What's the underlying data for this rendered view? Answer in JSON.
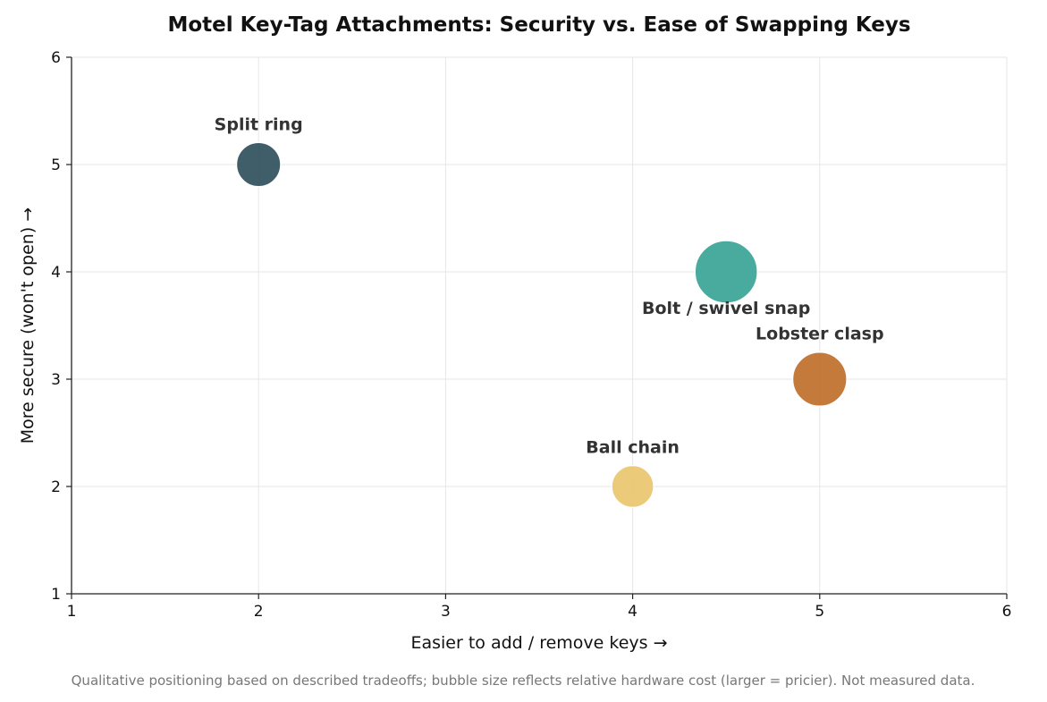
{
  "chart_data": {
    "type": "scatter",
    "title": "Motel Key-Tag Attachments: Security vs. Ease of Swapping Keys",
    "xlabel": "Easier to add / remove keys  →",
    "ylabel": "More secure (won't open) →",
    "xlim": [
      1,
      6
    ],
    "ylim": [
      1,
      6
    ],
    "xticks": [
      "1",
      "2",
      "3",
      "4",
      "5",
      "6"
    ],
    "yticks": [
      "1",
      "2",
      "3",
      "4",
      "5",
      "6"
    ],
    "grid": true,
    "size_meaning": "relative hardware cost",
    "points": [
      {
        "label": "Split ring",
        "x": 2,
        "y": 5,
        "cost": 2,
        "color": "#2b4c59",
        "label_pos": "above"
      },
      {
        "label": "Bolt / swivel snap",
        "x": 4.5,
        "y": 4,
        "cost": 4,
        "color": "#35a294",
        "label_pos": "below"
      },
      {
        "label": "Lobster clasp",
        "x": 5,
        "y": 3,
        "cost": 3,
        "color": "#bd6b26",
        "label_pos": "above"
      },
      {
        "label": "Ball chain",
        "x": 4,
        "y": 2,
        "cost": 1.8,
        "color": "#e9c46a",
        "label_pos": "above"
      }
    ],
    "footnote": "Qualitative positioning based on described tradeoffs; bubble size reflects relative hardware cost (larger = pricier). Not measured data."
  }
}
